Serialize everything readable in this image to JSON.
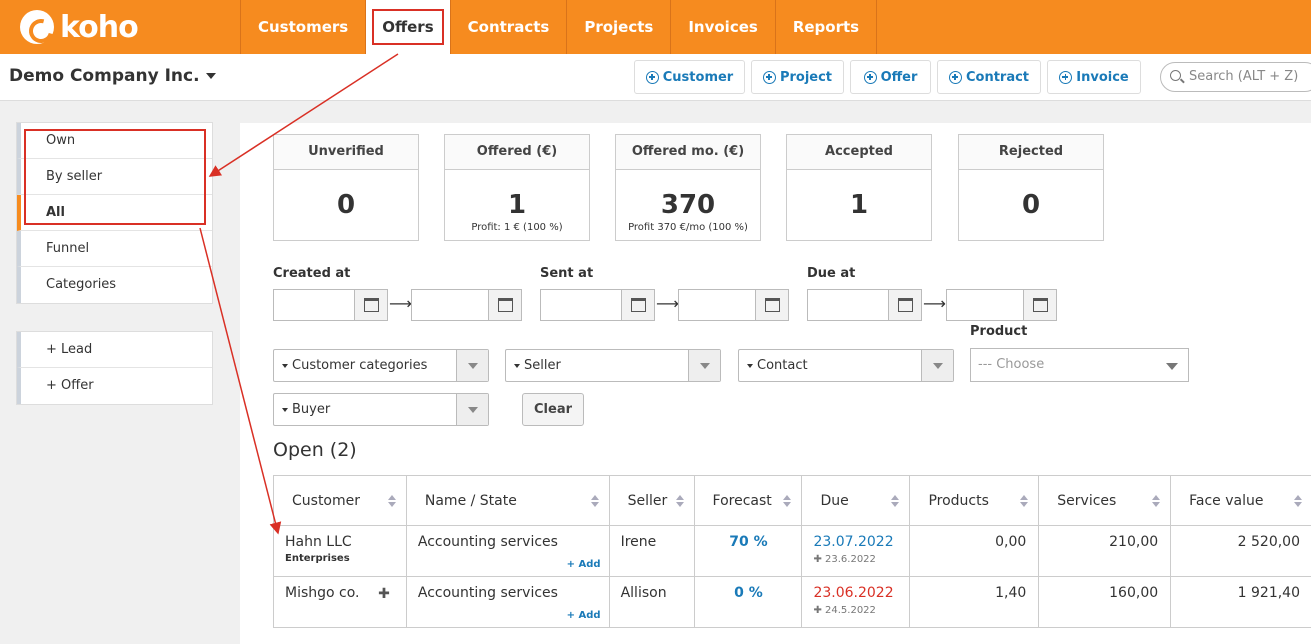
{
  "brand": "koho",
  "nav": [
    "Customers",
    "Offers",
    "Contracts",
    "Projects",
    "Invoices",
    "Reports"
  ],
  "company": "Demo Company Inc.",
  "quick_actions": [
    "Customer",
    "Project",
    "Offer",
    "Contract",
    "Invoice"
  ],
  "search": {
    "placeholder": "Search (ALT + Z)"
  },
  "sidebar": {
    "filters": [
      "Own",
      "By seller",
      "All",
      "Funnel",
      "Categories"
    ],
    "actions": [
      "+ Lead",
      "+ Offer"
    ]
  },
  "kpis": [
    {
      "title": "Unverified",
      "value": "0",
      "sub": ""
    },
    {
      "title": "Offered (€)",
      "value": "1",
      "sub": "Profit: 1 € (100 %)"
    },
    {
      "title": "Offered mo. (€)",
      "value": "370",
      "sub": "Profit 370 €/mo (100 %)"
    },
    {
      "title": "Accepted",
      "value": "1",
      "sub": ""
    },
    {
      "title": "Rejected",
      "value": "0",
      "sub": ""
    }
  ],
  "filters": {
    "created_at": "Created at",
    "sent_at": "Sent at",
    "due_at": "Due at",
    "product": "Product",
    "product_placeholder": "--- Choose",
    "customer_categories": "Customer categories",
    "seller": "Seller",
    "contact": "Contact",
    "buyer": "Buyer",
    "clear": "Clear"
  },
  "open_title": "Open (2)",
  "table": {
    "headers": [
      "Customer",
      "Name / State",
      "Seller",
      "Forecast",
      "Due",
      "Products",
      "Services",
      "Face value"
    ],
    "add_label": "+ Add",
    "rows": [
      {
        "customer": "Hahn LLC",
        "customer_sub": "Enterprises",
        "name": "Accounting services",
        "seller": "Irene",
        "forecast": "70 %",
        "due": "23.07.2022",
        "due_sub": "✚ 23.6.2022",
        "products": "0,00",
        "services": "210,00",
        "face_value": "2 520,00"
      },
      {
        "customer": "Mishgo co.",
        "customer_sub": "",
        "name": "Accounting services",
        "seller": "Allison",
        "forecast": "0 %",
        "due": "23.06.2022",
        "due_sub": "✚ 24.5.2022",
        "products": "1,40",
        "services": "160,00",
        "face_value": "1 921,40"
      }
    ]
  },
  "colors": {
    "brand": "#f68b1f",
    "link": "#1a7ab8",
    "overdue": "#d93025",
    "annotation": "#d93025"
  }
}
